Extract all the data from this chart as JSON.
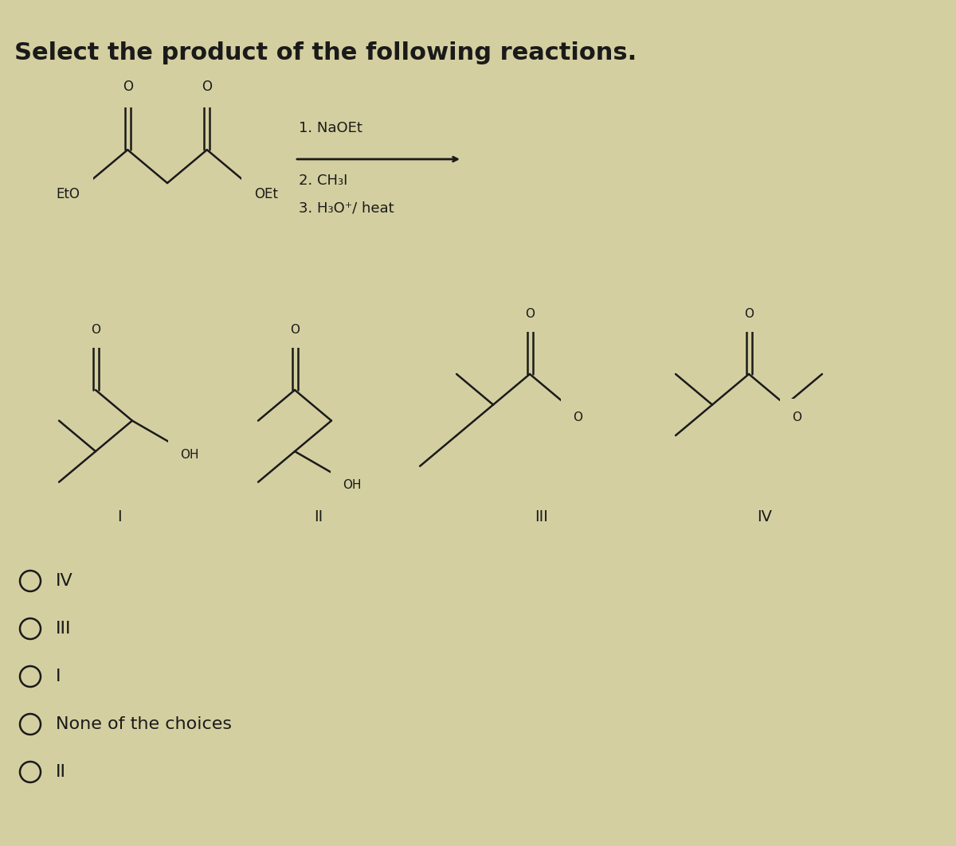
{
  "title": "Select the product of the following reactions.",
  "reaction_steps": [
    "1. NaOEt",
    "2. CH₃I",
    "3. H₃O⁺/ heat"
  ],
  "choices": [
    {
      "label": "IV"
    },
    {
      "label": "III"
    },
    {
      "label": "I"
    },
    {
      "label": "None of the choices"
    },
    {
      "label": "II"
    }
  ],
  "bg_color": "#d4cfa0",
  "text_color": "#1a1a1a",
  "font_size_title": 22,
  "font_size_body": 13,
  "font_size_atom": 11,
  "font_size_label": 13
}
